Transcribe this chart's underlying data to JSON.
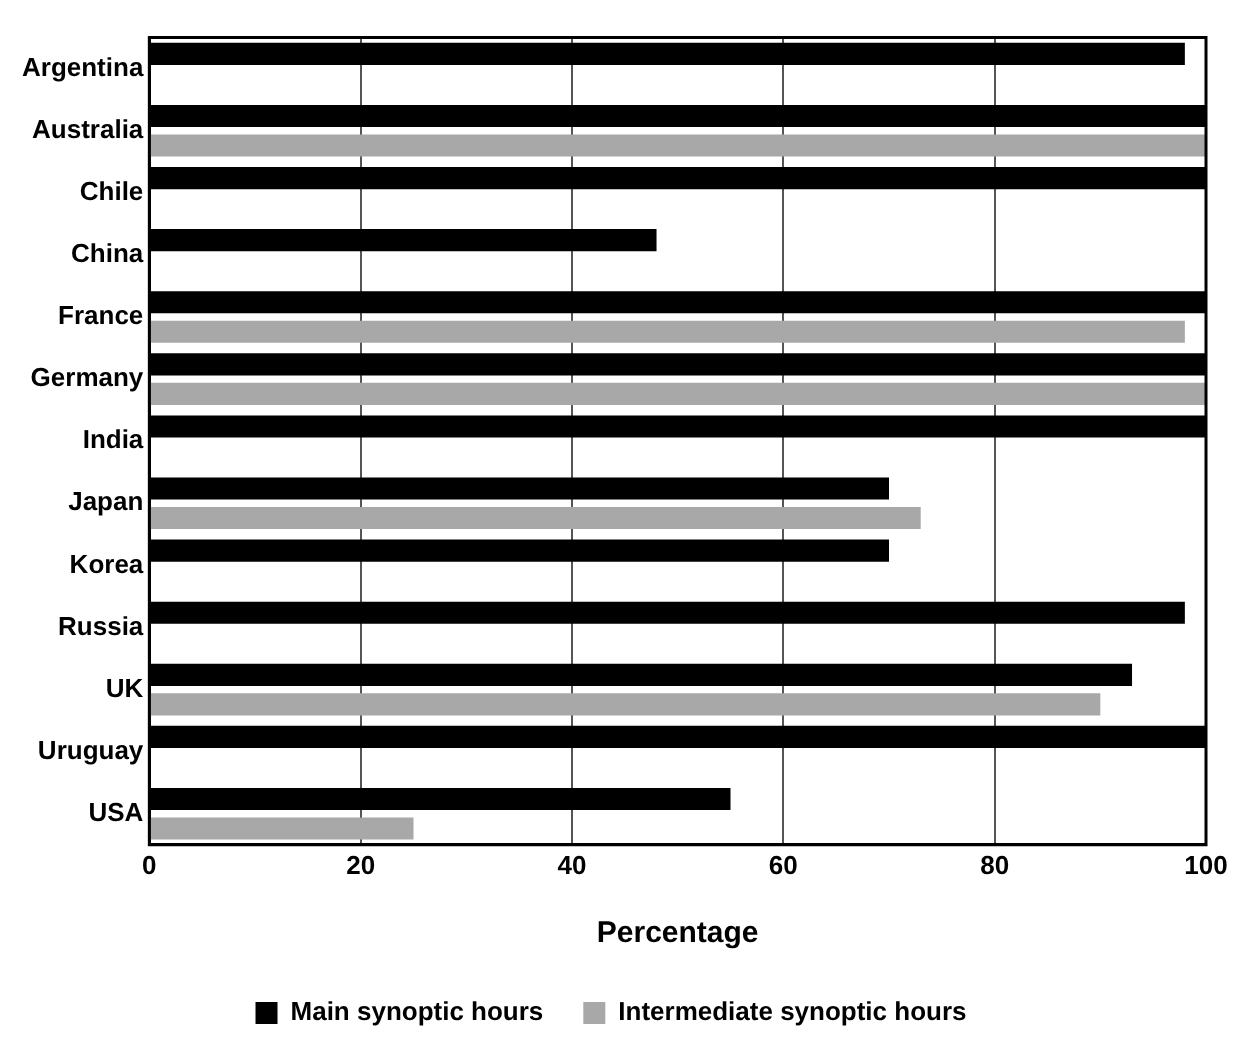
{
  "chart_data": {
    "type": "bar",
    "orientation": "horizontal",
    "xlabel": "Percentage",
    "categories": [
      "Argentina",
      "Australia",
      "Chile",
      "China",
      "France",
      "Germany",
      "India",
      "Japan",
      "Korea",
      "Russia",
      "UK",
      "Uruguay",
      "USA"
    ],
    "series": [
      {
        "name": "Main synoptic hours",
        "color": "#000000",
        "values": [
          98,
          100,
          100,
          48,
          100,
          100,
          100,
          70,
          70,
          98,
          93,
          100,
          55
        ]
      },
      {
        "name": "Intermediate synoptic hours",
        "color": "#a8a8a8",
        "values": [
          null,
          100,
          null,
          null,
          98,
          100,
          null,
          73,
          null,
          null,
          90,
          null,
          25
        ]
      }
    ],
    "xlim": [
      0,
      100
    ],
    "xticks": [
      0,
      20,
      40,
      60,
      80,
      100
    ],
    "grid": "x",
    "legend": "bottom"
  }
}
